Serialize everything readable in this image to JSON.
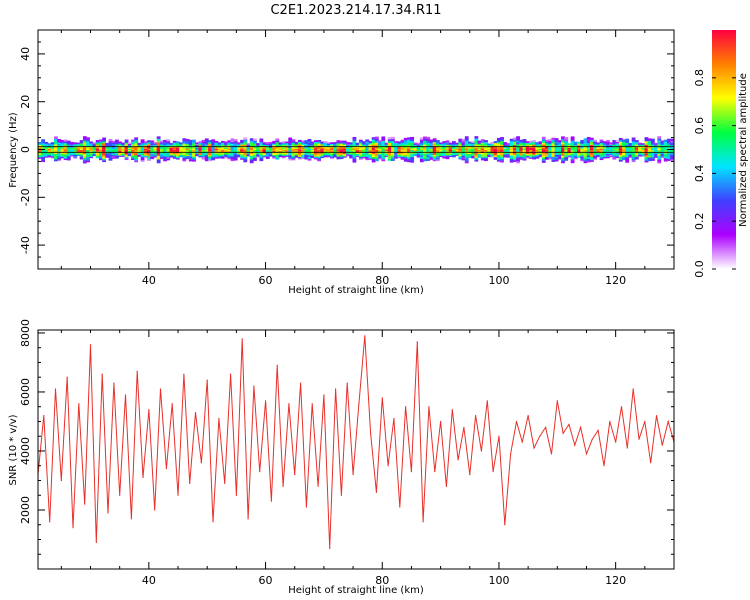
{
  "figure": {
    "title": "C2E1.2023.214.17.34.R11"
  },
  "chart_data": [
    {
      "type": "heatmap",
      "title": "C2E1.2023.214.17.34.R11",
      "xlabel": "Height of straight line (km)",
      "ylabel": "Frequency (Hz)",
      "xlim": [
        21,
        130
      ],
      "ylim": [
        -50,
        50
      ],
      "x_ticks": [
        40,
        60,
        80,
        100,
        120
      ],
      "y_ticks": [
        -40,
        -20,
        0,
        20,
        40
      ],
      "description_values": {
        "band_center_hz": 0,
        "band_halfwidth_hz": 4
      },
      "colorbar": {
        "label": "Normalized spectral amplitude",
        "range": [
          0,
          1
        ],
        "ticks": [
          0.0,
          0.2,
          0.4,
          0.6,
          0.8
        ],
        "colors": [
          "#ffffff",
          "#ad00ff",
          "#4040ff",
          "#00e5ff",
          "#00ff40",
          "#ffff00",
          "#ff8000",
          "#ff0040"
        ]
      },
      "grid": false
    },
    {
      "type": "line",
      "xlabel": "Height of straight line (km)",
      "ylabel": "SNR (10 * v/v)",
      "xlim": [
        21,
        130
      ],
      "ylim": [
        0,
        8100
      ],
      "x_ticks": [
        40,
        60,
        80,
        100,
        120
      ],
      "y_ticks": [
        2000,
        4000,
        6000,
        8000
      ],
      "series": [
        {
          "color": "#e8302a",
          "x": [
            21,
            22,
            23,
            24,
            25,
            26,
            27,
            28,
            29,
            30,
            31,
            32,
            33,
            34,
            35,
            36,
            37,
            38,
            39,
            40,
            41,
            42,
            43,
            44,
            45,
            46,
            47,
            48,
            49,
            50,
            51,
            52,
            53,
            54,
            55,
            56,
            57,
            58,
            59,
            60,
            61,
            62,
            63,
            64,
            65,
            66,
            67,
            68,
            69,
            70,
            71,
            72,
            73,
            74,
            75,
            76,
            77,
            78,
            79,
            80,
            81,
            82,
            83,
            84,
            85,
            86,
            87,
            88,
            89,
            90,
            91,
            92,
            93,
            94,
            95,
            96,
            97,
            98,
            99,
            100,
            101,
            102,
            103,
            104,
            105,
            106,
            107,
            108,
            109,
            110,
            111,
            112,
            113,
            114,
            115,
            116,
            117,
            118,
            119,
            120,
            121,
            122,
            123,
            124,
            125,
            126,
            127,
            128,
            129,
            130
          ],
          "y": [
            3200,
            5200,
            1600,
            6100,
            3000,
            6500,
            1400,
            5600,
            2200,
            7600,
            900,
            6600,
            1900,
            6300,
            2500,
            5900,
            1700,
            6700,
            3100,
            5400,
            2000,
            6100,
            3400,
            5600,
            2500,
            6600,
            2900,
            5300,
            3600,
            6400,
            1600,
            5100,
            2900,
            6600,
            2500,
            7800,
            1700,
            6200,
            3300,
            5700,
            2300,
            6900,
            2800,
            5600,
            3200,
            6300,
            2100,
            5600,
            2800,
            5900,
            700,
            6100,
            2500,
            6300,
            3200,
            5600,
            7900,
            4600,
            2600,
            5800,
            3500,
            5100,
            2100,
            5500,
            3300,
            7700,
            1600,
            5500,
            3300,
            5000,
            2800,
            5400,
            3700,
            4800,
            3200,
            5200,
            4000,
            5700,
            3300,
            4500,
            1500,
            3900,
            5000,
            4300,
            5200,
            4100,
            4500,
            4800,
            3900,
            5700,
            4600,
            4900,
            4200,
            4800,
            3900,
            4400,
            4700,
            3500,
            5000,
            4300,
            5500,
            4100,
            6100,
            4400,
            5000,
            3600,
            5200,
            4200,
            5000,
            4300
          ]
        }
      ],
      "grid": false
    }
  ]
}
